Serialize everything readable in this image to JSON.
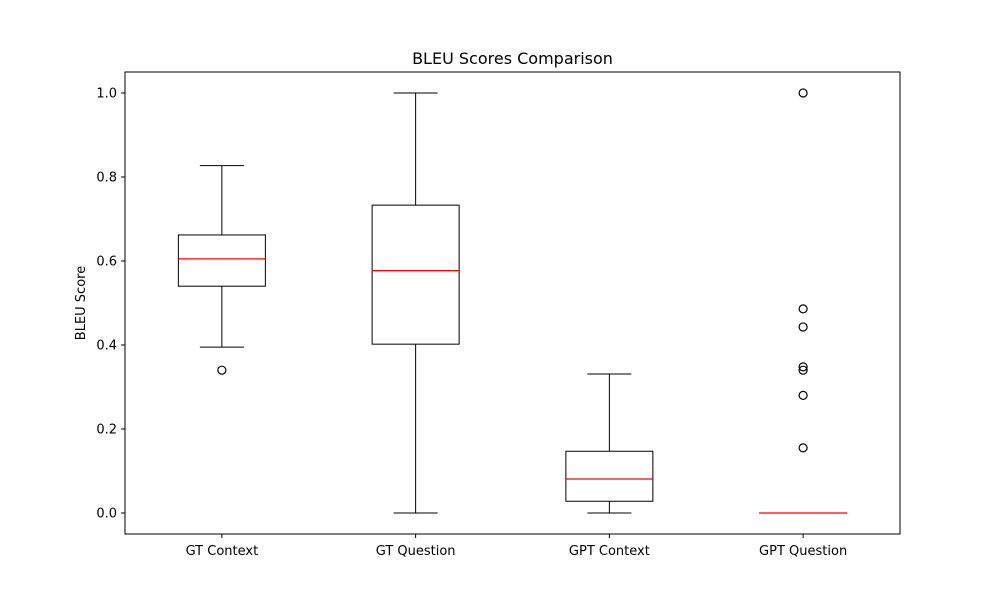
{
  "chart_data": {
    "type": "boxplot",
    "title": "BLEU Scores Comparison",
    "xlabel": "",
    "ylabel": "BLEU Score",
    "ylim": [
      -0.05,
      1.05
    ],
    "yticks": [
      0.0,
      0.2,
      0.4,
      0.6,
      0.8,
      1.0
    ],
    "ytick_labels": [
      "0.0",
      "0.2",
      "0.4",
      "0.6",
      "0.8",
      "1.0"
    ],
    "categories": [
      "GT Context",
      "GT Question",
      "GPT Context",
      "GPT Question"
    ],
    "grid": false,
    "colors": {
      "box": "#000000",
      "median": "#ff0000",
      "outlier": "#000000"
    },
    "boxes": [
      {
        "category": "GT Context",
        "whisker_low": 0.395,
        "q1": 0.54,
        "median": 0.605,
        "q3": 0.662,
        "whisker_high": 0.827,
        "outliers": [
          0.34
        ]
      },
      {
        "category": "GT Question",
        "whisker_low": 0.0,
        "q1": 0.402,
        "median": 0.577,
        "q3": 0.733,
        "whisker_high": 1.0,
        "outliers": []
      },
      {
        "category": "GPT Context",
        "whisker_low": 0.0,
        "q1": 0.028,
        "median": 0.081,
        "q3": 0.147,
        "whisker_high": 0.331,
        "outliers": []
      },
      {
        "category": "GPT Question",
        "whisker_low": 0.0,
        "q1": 0.0,
        "median": 0.0,
        "q3": 0.0,
        "whisker_high": 0.0,
        "outliers": [
          0.155,
          0.28,
          0.34,
          0.348,
          0.443,
          0.486,
          1.0
        ]
      }
    ]
  }
}
